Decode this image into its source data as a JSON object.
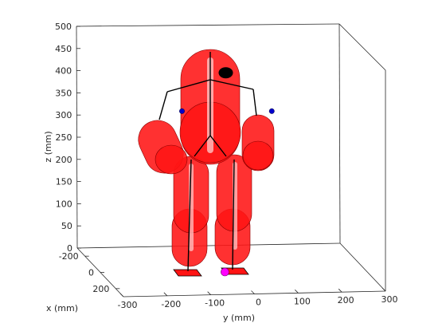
{
  "chart_data": {
    "type": "scatter",
    "projection": "3d",
    "xlabel": "x (mm)",
    "ylabel": "y (mm)",
    "zlabel": "z (mm)",
    "x_ticks": [
      "-200",
      "0",
      "200"
    ],
    "y_ticks": [
      "-300",
      "-200",
      "-100",
      "0",
      "100",
      "200",
      "300"
    ],
    "z_ticks": [
      "0",
      "50",
      "100",
      "150",
      "200",
      "250",
      "300",
      "350",
      "400",
      "450",
      "500"
    ],
    "xlim": [
      -300,
      300
    ],
    "ylim": [
      -300,
      300
    ],
    "zlim": [
      0,
      500
    ],
    "grid": false,
    "colors": {
      "body": "#ff1414",
      "body_edge": "#8a0000",
      "highlight": "#ffd0d0",
      "head_marker": "#000000",
      "joint": "#0000cc",
      "com_marker": "#ff00ff",
      "foot": "#ff1414"
    },
    "joints": [
      {
        "name": "left-shoulder",
        "y": -110,
        "z": 355
      },
      {
        "name": "right-shoulder",
        "y": 95,
        "z": 355
      }
    ],
    "com_marker": {
      "y": -12,
      "z": 0
    },
    "head_marker": {
      "y": -10,
      "z": 445
    }
  }
}
